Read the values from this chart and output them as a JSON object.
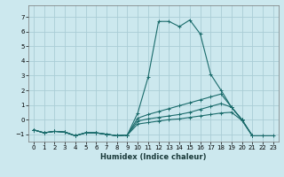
{
  "title": "",
  "xlabel": "Humidex (Indice chaleur)",
  "ylabel": "",
  "bg_color": "#cce8ee",
  "grid_color": "#aacdd6",
  "line_color": "#1a6b6b",
  "xlim": [
    -0.5,
    23.5
  ],
  "ylim": [
    -1.5,
    7.8
  ],
  "yticks": [
    -1,
    0,
    1,
    2,
    3,
    4,
    5,
    6,
    7
  ],
  "xticks": [
    0,
    1,
    2,
    3,
    4,
    5,
    6,
    7,
    8,
    9,
    10,
    11,
    12,
    13,
    14,
    15,
    16,
    17,
    18,
    19,
    20,
    21,
    22,
    23
  ],
  "lines": [
    {
      "x": [
        0,
        1,
        2,
        3,
        4,
        5,
        6,
        7,
        8,
        9,
        10,
        11,
        12,
        13,
        14,
        15,
        16,
        17,
        18,
        19,
        20,
        21
      ],
      "y": [
        -0.7,
        -0.9,
        -0.8,
        -0.85,
        -1.1,
        -0.9,
        -0.9,
        -1.0,
        -1.1,
        -1.05,
        0.45,
        2.9,
        6.7,
        6.7,
        6.35,
        6.8,
        5.85,
        3.1,
        2.0,
        0.85,
        0.0,
        -1.1
      ]
    },
    {
      "x": [
        0,
        1,
        2,
        3,
        4,
        5,
        6,
        7,
        8,
        9,
        10,
        11,
        12,
        13,
        14,
        15,
        16,
        17,
        18,
        19,
        20,
        21
      ],
      "y": [
        -0.7,
        -0.9,
        -0.8,
        -0.85,
        -1.1,
        -0.9,
        -0.9,
        -1.0,
        -1.1,
        -1.05,
        0.1,
        0.35,
        0.55,
        0.75,
        0.95,
        1.15,
        1.35,
        1.55,
        1.75,
        0.85,
        0.0,
        -1.1
      ]
    },
    {
      "x": [
        0,
        1,
        2,
        3,
        4,
        5,
        6,
        7,
        8,
        9,
        10,
        11,
        12,
        13,
        14,
        15,
        16,
        17,
        18,
        19,
        20,
        21
      ],
      "y": [
        -0.7,
        -0.9,
        -0.8,
        -0.85,
        -1.1,
        -0.9,
        -0.9,
        -1.0,
        -1.1,
        -1.05,
        -0.1,
        0.05,
        0.15,
        0.25,
        0.35,
        0.5,
        0.7,
        0.9,
        1.1,
        0.85,
        0.0,
        -1.1
      ]
    },
    {
      "x": [
        0,
        1,
        2,
        3,
        4,
        5,
        6,
        7,
        8,
        9,
        10,
        11,
        12,
        13,
        14,
        15,
        16,
        17,
        18,
        19,
        20,
        21,
        22,
        23
      ],
      "y": [
        -0.7,
        -0.9,
        -0.8,
        -0.85,
        -1.1,
        -0.9,
        -0.9,
        -1.0,
        -1.1,
        -1.05,
        -0.3,
        -0.2,
        -0.1,
        0.0,
        0.05,
        0.15,
        0.25,
        0.35,
        0.45,
        0.5,
        -0.05,
        -1.1,
        -1.1,
        -1.1
      ]
    }
  ]
}
